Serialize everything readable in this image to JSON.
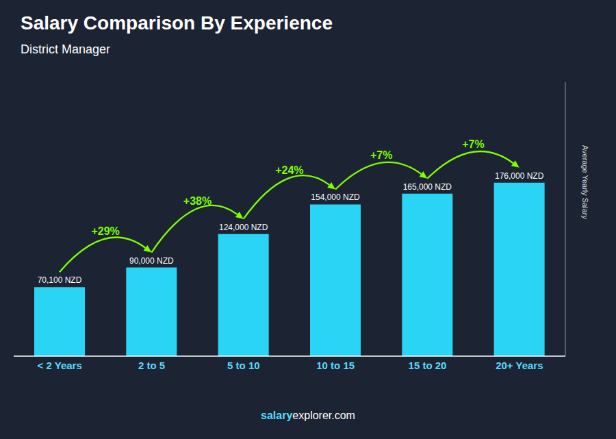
{
  "chart_data": {
    "type": "bar",
    "title": "Salary Comparison By Experience",
    "subtitle": "District Manager",
    "categories": [
      "< 2 Years",
      "2 to 5",
      "5 to 10",
      "10 to 15",
      "15 to 20",
      "20+ Years"
    ],
    "values": [
      70100,
      90000,
      124000,
      154000,
      165000,
      176000
    ],
    "value_labels": [
      "70,100 NZD",
      "90,000 NZD",
      "124,000 NZD",
      "154,000 NZD",
      "165,000 NZD",
      "176,000 NZD"
    ],
    "data_labels": true,
    "color": "#29d4f5",
    "ylabel": "Average Yearly Salary",
    "ylim": [
      0,
      278080
    ],
    "tick_labels": "x",
    "grid": false,
    "annotations": [
      "+29%",
      "+38%",
      "+24%",
      "+7%",
      "+7%"
    ],
    "footer": [
      "salary",
      "explorer.com"
    ]
  }
}
